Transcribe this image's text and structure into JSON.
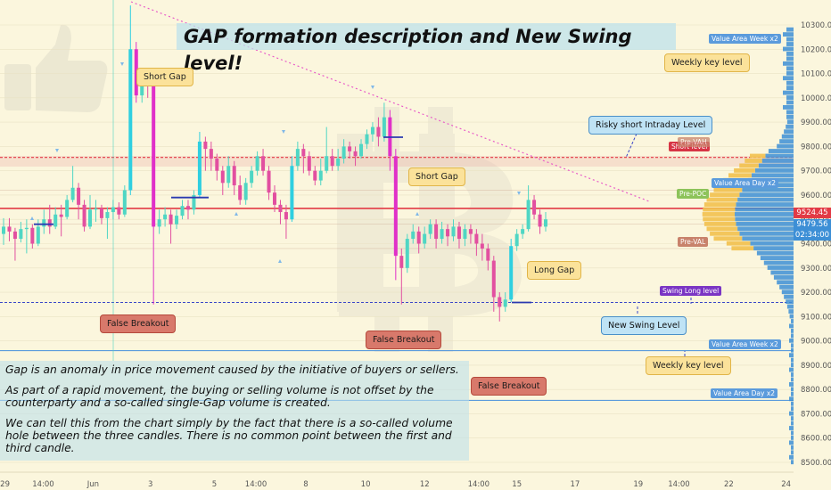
{
  "title": "GAP formation description and New Swing level!",
  "description": [
    "Gap is an anomaly in price movement caused by the initiative of buyers or sellers.",
    "As part of a rapid movement, the buying or selling  volume is not offset by the counterparty and a so-called single-Gap volume is created.",
    "We can tell this from the chart simply by the fact that there is a so-called volume hole between the three candles. There is no common point between the first and third candle."
  ],
  "callouts": {
    "short_gap_1": "Short Gap",
    "short_gap_2": "Short Gap",
    "long_gap": "Long Gap",
    "false_breakout_1": "False Breakout",
    "false_breakout_2": "False Breakout",
    "false_breakout_3": "False Breakout",
    "risky_short": "Risky short Intraday Level",
    "new_swing": "New Swing Level",
    "weekly_key_1": "Weekly key level",
    "weekly_key_2": "Weekly key level"
  },
  "level_tags": {
    "va_week_top": "Value Area Week x2",
    "va_week_bottom": "Value Area Week x2",
    "va_day_top": "Value Area Day x2",
    "va_day_bottom": "Value Area Day x2",
    "short_level": "Short level",
    "pre_vah": "Pre-VAH",
    "pre_poc": "Pre-POC",
    "pre_val": "Pre-VAL",
    "swing_long": "Swing Long level"
  },
  "price_tags": {
    "red": "9524.45",
    "blue": "9479.56",
    "timer": "02:34:00"
  },
  "colors": {
    "background": "#fbf6dd",
    "bull": "#4fd6c4",
    "bear": "#e24fa0",
    "gap_bull": "#2fcfe0",
    "gap_bear": "#e030c8",
    "level_red": "#e23a45",
    "level_blue": "#3a45c8",
    "profile_blue": "#3d8fd6",
    "profile_yellow": "#f2c14e"
  },
  "chart_data": {
    "type": "candlestick",
    "y_axis": {
      "labels": [
        "10300.00",
        "10200.00",
        "10100.00",
        "10000.00",
        "9900.00",
        "9800.00",
        "9700.00",
        "9600.00",
        "9500.00",
        "9400.00",
        "9300.00",
        "9200.00",
        "9100.00",
        "9000.00",
        "8900.00",
        "8800.00",
        "8700.00",
        "8600.00",
        "8500.00"
      ],
      "values": [
        10300,
        10200,
        10100,
        10000,
        9900,
        9800,
        9700,
        9600,
        9500,
        9400,
        9300,
        9200,
        9100,
        9000,
        8900,
        8800,
        8700,
        8600,
        8500
      ],
      "range": [
        8450,
        10350
      ]
    },
    "x_axis": {
      "labels": [
        "29",
        "14:00",
        "Jun",
        "3",
        "5",
        "14:00",
        "8",
        "10",
        "12",
        "14:00",
        "15",
        "17",
        "19",
        "14:00",
        "22",
        "24"
      ],
      "label_positions_fraction": [
        0.006,
        0.052,
        0.112,
        0.181,
        0.258,
        0.308,
        0.368,
        0.44,
        0.511,
        0.576,
        0.622,
        0.692,
        0.768,
        0.817,
        0.877,
        0.946
      ]
    },
    "levels": [
      {
        "name": "Short level",
        "price": 9755,
        "color": "#e23a45"
      },
      {
        "name": "Pre-POC",
        "price": 9545,
        "color": "#e23a45"
      },
      {
        "name": "Swing Long level",
        "price": 9158,
        "color": "#3a45c8"
      },
      {
        "name": "Value Area Week x2 (bottom)",
        "price": 8960,
        "color": "#5b9bdc"
      },
      {
        "name": "Value Area Day x2 (bottom)",
        "price": 8755,
        "color": "#5b9bdc"
      }
    ],
    "candles": [
      [
        9440,
        9470,
        9395,
        9505
      ],
      [
        9470,
        9450,
        9410,
        9505
      ],
      [
        9450,
        9420,
        9330,
        9465
      ],
      [
        9420,
        9460,
        9405,
        9490
      ],
      [
        9460,
        9465,
        9360,
        9500
      ],
      [
        9465,
        9400,
        9380,
        9480
      ],
      [
        9400,
        9470,
        9390,
        9500
      ],
      [
        9470,
        9500,
        9440,
        9540
      ],
      [
        9500,
        9470,
        9440,
        9560
      ],
      [
        9470,
        9520,
        9460,
        9550
      ],
      [
        9520,
        9510,
        9430,
        9560
      ],
      [
        9510,
        9580,
        9500,
        9600
      ],
      [
        9580,
        9630,
        9570,
        9720
      ],
      [
        9630,
        9560,
        9500,
        9650
      ],
      [
        9560,
        9470,
        9450,
        9580
      ],
      [
        9470,
        9540,
        9460,
        9600
      ],
      [
        9540,
        9545,
        9490,
        9580
      ],
      [
        9545,
        9505,
        9480,
        9560
      ],
      [
        9505,
        9530,
        9420,
        9550
      ],
      [
        9530,
        9550,
        9500,
        9580
      ],
      [
        9550,
        9520,
        9500,
        9570
      ],
      [
        9520,
        9620,
        9510,
        9640
      ],
      [
        9620,
        10200,
        9600,
        10380
      ],
      [
        10200,
        10010,
        9980,
        10230
      ],
      [
        10010,
        10080,
        9980,
        10100
      ],
      [
        10080,
        10060,
        10000,
        10110
      ],
      [
        10060,
        9470,
        9150,
        10080
      ],
      [
        9470,
        9500,
        9440,
        9540
      ],
      [
        9500,
        9520,
        9470,
        9550
      ],
      [
        9520,
        9480,
        9400,
        9540
      ],
      [
        9480,
        9515,
        9460,
        9540
      ],
      [
        9515,
        9555,
        9500,
        9580
      ],
      [
        9555,
        9540,
        9500,
        9580
      ],
      [
        9540,
        9600,
        9520,
        9620
      ],
      [
        9600,
        9820,
        9590,
        9860
      ],
      [
        9820,
        9790,
        9700,
        9840
      ],
      [
        9790,
        9750,
        9700,
        9820
      ],
      [
        9750,
        9700,
        9660,
        9770
      ],
      [
        9700,
        9650,
        9600,
        9720
      ],
      [
        9650,
        9720,
        9630,
        9760
      ],
      [
        9720,
        9640,
        9600,
        9740
      ],
      [
        9640,
        9580,
        9560,
        9680
      ],
      [
        9580,
        9650,
        9560,
        9670
      ],
      [
        9650,
        9700,
        9630,
        9720
      ],
      [
        9700,
        9760,
        9680,
        9780
      ],
      [
        9760,
        9700,
        9680,
        9790
      ],
      [
        9700,
        9610,
        9580,
        9720
      ],
      [
        9610,
        9560,
        9530,
        9640
      ],
      [
        9560,
        9530,
        9480,
        9580
      ],
      [
        9530,
        9500,
        9420,
        9560
      ],
      [
        9500,
        9720,
        9490,
        9760
      ],
      [
        9720,
        9790,
        9700,
        9820
      ],
      [
        9790,
        9760,
        9690,
        9810
      ],
      [
        9760,
        9700,
        9680,
        9780
      ],
      [
        9700,
        9660,
        9640,
        9720
      ],
      [
        9660,
        9700,
        9640,
        9750
      ],
      [
        9700,
        9760,
        9690,
        9880
      ],
      [
        9760,
        9720,
        9700,
        9790
      ],
      [
        9720,
        9750,
        9700,
        9790
      ],
      [
        9750,
        9800,
        9730,
        9830
      ],
      [
        9800,
        9780,
        9750,
        9820
      ],
      [
        9780,
        9760,
        9720,
        9800
      ],
      [
        9760,
        9810,
        9750,
        9830
      ],
      [
        9810,
        9850,
        9790,
        9870
      ],
      [
        9850,
        9880,
        9820,
        9900
      ],
      [
        9880,
        9840,
        9800,
        9920
      ],
      [
        9840,
        9920,
        9820,
        9980
      ],
      [
        9920,
        9760,
        9700,
        9950
      ],
      [
        9760,
        9350,
        9250,
        9790
      ],
      [
        9350,
        9300,
        9150,
        9380
      ],
      [
        9300,
        9420,
        9280,
        9440
      ],
      [
        9420,
        9450,
        9400,
        9480
      ],
      [
        9450,
        9400,
        9360,
        9470
      ],
      [
        9400,
        9440,
        9380,
        9470
      ],
      [
        9440,
        9480,
        9420,
        9500
      ],
      [
        9480,
        9420,
        9380,
        9500
      ],
      [
        9420,
        9460,
        9400,
        9490
      ],
      [
        9460,
        9430,
        9390,
        9480
      ],
      [
        9430,
        9470,
        9410,
        9500
      ],
      [
        9470,
        9420,
        9380,
        9490
      ],
      [
        9420,
        9460,
        9390,
        9480
      ],
      [
        9460,
        9440,
        9400,
        9480
      ],
      [
        9440,
        9400,
        9350,
        9460
      ],
      [
        9400,
        9380,
        9330,
        9440
      ],
      [
        9380,
        9330,
        9290,
        9400
      ],
      [
        9330,
        9180,
        9120,
        9350
      ],
      [
        9180,
        9140,
        9080,
        9200
      ],
      [
        9140,
        9170,
        9120,
        9200
      ],
      [
        9170,
        9390,
        9160,
        9420
      ],
      [
        9390,
        9440,
        9370,
        9460
      ],
      [
        9440,
        9460,
        9420,
        9480
      ],
      [
        9460,
        9580,
        9450,
        9640
      ],
      [
        9580,
        9520,
        9500,
        9600
      ],
      [
        9520,
        9470,
        9440,
        9540
      ],
      [
        9470,
        9500,
        9450,
        9530
      ]
    ]
  }
}
